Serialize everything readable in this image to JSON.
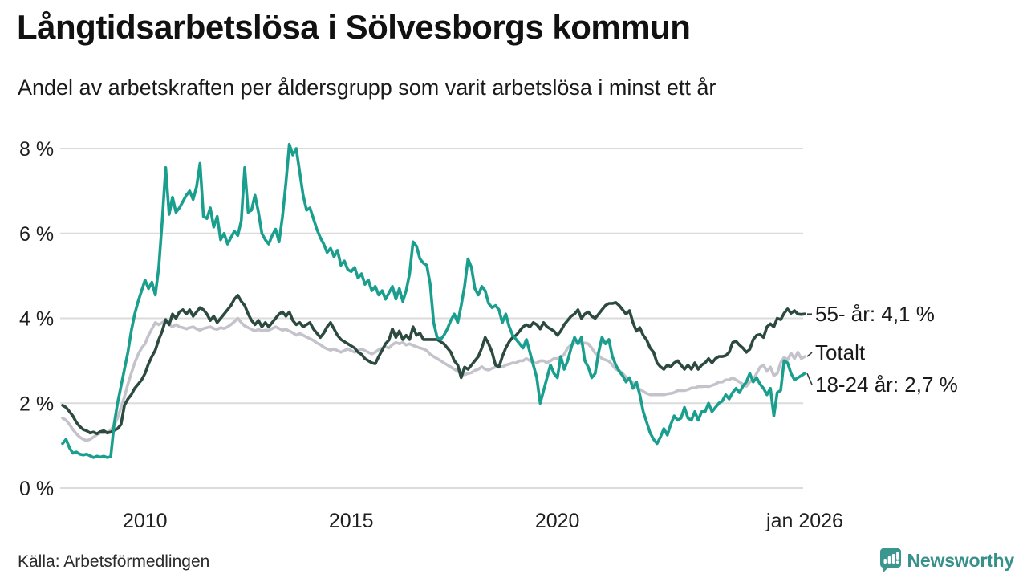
{
  "chart_data": {
    "type": "line",
    "title": "Långtidsarbetslösa i Sölvesborgs kommun",
    "subtitle": "Andel av arbetskraften per åldersgrupp som varit arbetslösa i minst ett år",
    "x_start": "2008-01",
    "x_end": "2026-01",
    "x_ticks": [
      {
        "label": "2010",
        "year": 2010
      },
      {
        "label": "2015",
        "year": 2015
      },
      {
        "label": "2020",
        "year": 2020
      },
      {
        "label": "jan 2026",
        "year": 2026
      }
    ],
    "y_ticks": [
      {
        "label": "0 %",
        "value": 0
      },
      {
        "label": "2 %",
        "value": 2
      },
      {
        "label": "4 %",
        "value": 4
      },
      {
        "label": "6 %",
        "value": 6
      },
      {
        "label": "8 %",
        "value": 8
      }
    ],
    "ylim": [
      0,
      8.6
    ],
    "grid": "horizontal",
    "legend_position": "right-end-labels",
    "colors": {
      "grid": "#dbdbdb",
      "text": "#1f1f1f",
      "connector": "#3a3a3a"
    },
    "series": [
      {
        "name": "Totalt",
        "color": "#c4c2cb",
        "end_label": "Totalt",
        "label_dy": -5,
        "values": [
          1.65,
          1.6,
          1.5,
          1.38,
          1.28,
          1.2,
          1.15,
          1.12,
          1.15,
          1.2,
          1.26,
          1.3,
          1.3,
          1.32,
          1.36,
          1.48,
          1.65,
          1.9,
          2.15,
          2.45,
          2.7,
          2.95,
          3.15,
          3.3,
          3.4,
          3.6,
          3.75,
          3.9,
          3.85,
          3.9,
          3.95,
          3.85,
          3.8,
          3.85,
          3.8,
          3.78,
          3.75,
          3.78,
          3.8,
          3.75,
          3.72,
          3.76,
          3.78,
          3.8,
          3.76,
          3.74,
          3.78,
          3.76,
          3.8,
          3.85,
          3.92,
          4.0,
          3.9,
          3.82,
          3.78,
          3.74,
          3.7,
          3.74,
          3.7,
          3.72,
          3.72,
          3.76,
          3.8,
          3.76,
          3.72,
          3.74,
          3.7,
          3.66,
          3.6,
          3.64,
          3.6,
          3.56,
          3.52,
          3.48,
          3.42,
          3.38,
          3.32,
          3.28,
          3.25,
          3.28,
          3.24,
          3.2,
          3.24,
          3.28,
          3.24,
          3.2,
          3.24,
          3.28,
          3.24,
          3.2,
          3.16,
          3.2,
          3.26,
          3.3,
          3.33,
          3.3,
          3.38,
          3.43,
          3.4,
          3.43,
          3.37,
          3.4,
          3.36,
          3.33,
          3.3,
          3.28,
          3.24,
          3.15,
          3.1,
          3.05,
          3.0,
          2.95,
          2.9,
          2.85,
          2.8,
          2.75,
          2.7,
          2.67,
          2.7,
          2.72,
          2.77,
          2.8,
          2.86,
          2.8,
          2.78,
          2.82,
          2.85,
          2.88,
          2.85,
          2.9,
          2.92,
          2.95,
          2.95,
          3.0,
          3.0,
          3.05,
          3.0,
          2.95,
          2.95,
          3.0,
          3.0,
          2.95,
          3.0,
          3.05,
          3.05,
          3.08,
          3.15,
          3.3,
          3.37,
          3.43,
          3.43,
          3.4,
          3.42,
          3.4,
          3.3,
          3.18,
          3.12,
          3.05,
          3.02,
          2.99,
          2.9,
          2.8,
          2.77,
          2.7,
          2.61,
          2.55,
          2.48,
          2.39,
          2.33,
          2.28,
          2.23,
          2.2,
          2.2,
          2.2,
          2.2,
          2.2,
          2.22,
          2.23,
          2.25,
          2.3,
          2.3,
          2.3,
          2.32,
          2.36,
          2.36,
          2.39,
          2.39,
          2.4,
          2.39,
          2.42,
          2.45,
          2.5,
          2.5,
          2.55,
          2.55,
          2.6,
          2.55,
          2.5,
          2.45,
          2.4,
          2.5,
          2.55,
          2.7,
          2.85,
          2.9,
          2.75,
          2.85,
          2.65,
          2.7,
          2.95,
          3.08,
          3.02,
          3.18,
          3.05,
          3.2,
          3.05,
          3.1
        ]
      },
      {
        "name": "55- år",
        "color": "#2d4a40",
        "end_label": "55- år: 4,1 %",
        "label_dy": 0,
        "values": [
          1.95,
          1.9,
          1.8,
          1.7,
          1.55,
          1.45,
          1.38,
          1.35,
          1.3,
          1.32,
          1.28,
          1.33,
          1.35,
          1.3,
          1.32,
          1.36,
          1.4,
          1.5,
          1.95,
          2.1,
          2.2,
          2.35,
          2.45,
          2.55,
          2.7,
          2.93,
          3.1,
          3.25,
          3.5,
          3.7,
          3.97,
          3.85,
          4.1,
          4.0,
          4.15,
          4.2,
          4.1,
          4.2,
          4.05,
          4.15,
          4.25,
          4.2,
          4.1,
          3.95,
          4.05,
          3.9,
          4.0,
          4.1,
          4.2,
          4.3,
          4.45,
          4.54,
          4.4,
          4.3,
          4.1,
          3.95,
          3.85,
          3.95,
          3.8,
          3.9,
          3.8,
          3.9,
          4.0,
          4.1,
          4.15,
          4.05,
          4.15,
          3.95,
          3.85,
          3.9,
          3.8,
          3.85,
          3.9,
          3.75,
          3.65,
          3.55,
          3.65,
          3.8,
          3.9,
          3.75,
          3.6,
          3.5,
          3.45,
          3.4,
          3.35,
          3.3,
          3.2,
          3.15,
          3.05,
          3.0,
          2.95,
          2.93,
          3.1,
          3.25,
          3.4,
          3.49,
          3.75,
          3.55,
          3.7,
          3.5,
          3.6,
          3.5,
          3.8,
          3.6,
          3.65,
          3.5,
          3.5,
          3.5,
          3.5,
          3.5,
          3.45,
          3.4,
          3.3,
          3.2,
          3.0,
          2.9,
          2.6,
          2.85,
          2.8,
          2.9,
          3.0,
          3.1,
          3.3,
          3.55,
          3.4,
          3.2,
          2.9,
          2.85,
          3.1,
          3.3,
          3.45,
          3.55,
          3.6,
          3.7,
          3.8,
          3.85,
          3.8,
          3.9,
          3.85,
          3.75,
          3.9,
          3.8,
          3.75,
          3.7,
          3.6,
          3.7,
          3.85,
          3.95,
          4.05,
          4.1,
          4.2,
          4.0,
          4.1,
          4.15,
          4.05,
          4.0,
          4.1,
          4.2,
          4.3,
          4.35,
          4.35,
          4.37,
          4.3,
          4.2,
          4.1,
          4.18,
          3.9,
          3.7,
          3.78,
          3.6,
          3.49,
          3.3,
          3.2,
          2.95,
          2.86,
          2.8,
          2.9,
          2.86,
          2.95,
          3.0,
          2.9,
          2.8,
          2.9,
          2.8,
          2.95,
          2.8,
          2.9,
          2.95,
          3.05,
          2.95,
          3.05,
          3.1,
          3.1,
          3.12,
          3.2,
          3.43,
          3.46,
          3.37,
          3.3,
          3.2,
          3.27,
          3.5,
          3.6,
          3.62,
          3.55,
          3.8,
          3.87,
          3.8,
          4.0,
          3.97,
          4.12,
          4.22,
          4.12,
          4.18,
          4.1,
          4.09,
          4.1
        ]
      },
      {
        "name": "18-24 år",
        "color": "#1a9e8d",
        "end_label": "18-24 år: 2,7 %",
        "label_dy": 14,
        "values": [
          1.05,
          1.15,
          0.95,
          0.82,
          0.85,
          0.8,
          0.78,
          0.8,
          0.76,
          0.72,
          0.75,
          0.73,
          0.75,
          0.72,
          0.74,
          1.5,
          2.0,
          2.4,
          2.8,
          3.2,
          3.7,
          4.1,
          4.4,
          4.65,
          4.9,
          4.7,
          4.85,
          4.55,
          5.2,
          6.3,
          7.55,
          6.45,
          6.85,
          6.5,
          6.6,
          6.75,
          6.9,
          7.0,
          6.8,
          7.1,
          7.65,
          6.4,
          6.35,
          6.6,
          6.15,
          6.4,
          5.85,
          6.0,
          5.75,
          5.9,
          6.05,
          5.95,
          6.3,
          7.55,
          6.5,
          6.55,
          6.9,
          6.5,
          6.0,
          5.85,
          5.75,
          5.95,
          6.1,
          5.8,
          6.4,
          7.2,
          8.1,
          7.85,
          8.0,
          7.45,
          6.9,
          6.55,
          6.6,
          6.35,
          6.1,
          5.9,
          5.75,
          5.55,
          5.65,
          5.45,
          5.6,
          5.25,
          5.35,
          5.15,
          5.1,
          5.2,
          4.95,
          5.05,
          4.8,
          4.9,
          4.65,
          4.75,
          4.55,
          4.65,
          4.45,
          4.6,
          4.75,
          4.45,
          4.7,
          4.4,
          4.65,
          5.05,
          5.8,
          5.7,
          5.4,
          5.3,
          5.25,
          4.8,
          3.9,
          3.55,
          3.5,
          3.6,
          3.75,
          3.95,
          4.1,
          3.9,
          4.3,
          4.75,
          5.4,
          5.2,
          4.7,
          4.55,
          4.75,
          4.65,
          4.35,
          4.25,
          4.3,
          4.2,
          3.9,
          4.1,
          3.8,
          3.6,
          3.5,
          3.4,
          3.3,
          3.5,
          3.2,
          2.9,
          2.6,
          2.0,
          2.3,
          2.6,
          2.9,
          2.7,
          2.6,
          3.1,
          2.8,
          3.0,
          3.3,
          3.55,
          3.4,
          3.55,
          3.0,
          2.85,
          2.6,
          2.7,
          3.2,
          3.55,
          3.4,
          3.5,
          3.1,
          2.9,
          2.75,
          2.65,
          2.5,
          2.6,
          2.35,
          2.5,
          2.2,
          1.8,
          1.55,
          1.3,
          1.15,
          1.05,
          1.2,
          1.4,
          1.25,
          1.5,
          1.7,
          1.6,
          1.65,
          1.9,
          1.65,
          1.6,
          1.8,
          1.6,
          1.8,
          1.8,
          2.0,
          1.8,
          1.9,
          2.0,
          2.05,
          2.2,
          2.1,
          2.25,
          2.35,
          2.25,
          2.4,
          2.5,
          2.7,
          2.5,
          2.6,
          2.45,
          2.35,
          2.2,
          2.35,
          1.7,
          2.25,
          2.3,
          3.0,
          2.95,
          2.7,
          2.55,
          2.6,
          2.65,
          2.7
        ]
      }
    ]
  },
  "footer": {
    "source": "Källa: Arbetsförmedlingen",
    "brand": "Newsworthy"
  }
}
